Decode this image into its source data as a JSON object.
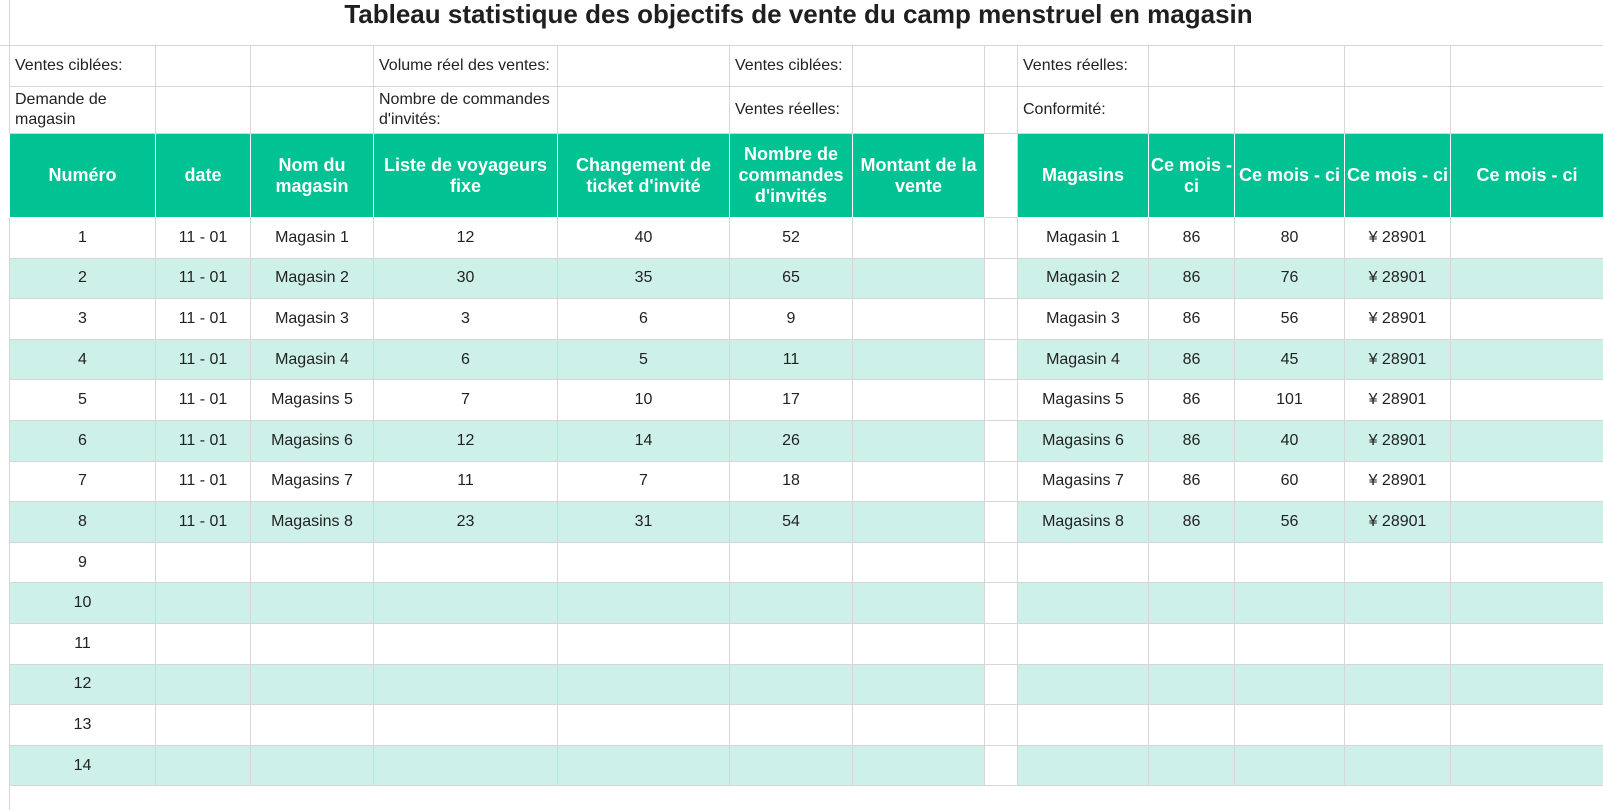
{
  "title": "Tableau statistique des objectifs de vente du camp menstruel en magasin",
  "info": {
    "row1": {
      "a": "Ventes ciblées:",
      "b": "Volume réel des ventes:",
      "c": "Ventes ciblées:",
      "d": "Ventes réelles:"
    },
    "row2": {
      "a": "Demande de magasin",
      "b": "Nombre de commandes d'invités:",
      "c": "Ventes réelles:",
      "d": "Conformité:"
    }
  },
  "left_table": {
    "headers": [
      "Numéro",
      "date",
      "Nom du magasin",
      "Liste de voyageurs fixe",
      "Changement de ticket d'invité",
      "Nombre de commandes d'invités",
      "Montant de la vente"
    ],
    "rows": [
      [
        "1",
        "11 - 01",
        "Magasin 1",
        "12",
        "40",
        "52",
        ""
      ],
      [
        "2",
        "11 - 01",
        "Magasin 2",
        "30",
        "35",
        "65",
        ""
      ],
      [
        "3",
        "11 - 01",
        "Magasin 3",
        "3",
        "6",
        "9",
        ""
      ],
      [
        "4",
        "11 - 01",
        "Magasin 4",
        "6",
        "5",
        "11",
        ""
      ],
      [
        "5",
        "11 - 01",
        "Magasins 5",
        "7",
        "10",
        "17",
        ""
      ],
      [
        "6",
        "11 - 01",
        "Magasins 6",
        "12",
        "14",
        "26",
        ""
      ],
      [
        "7",
        "11 - 01",
        "Magasins 7",
        "11",
        "7",
        "18",
        ""
      ],
      [
        "8",
        "11 - 01",
        "Magasins 8",
        "23",
        "31",
        "54",
        ""
      ],
      [
        "9",
        "",
        "",
        "",
        "",
        "",
        ""
      ],
      [
        "10",
        "",
        "",
        "",
        "",
        "",
        ""
      ],
      [
        "11",
        "",
        "",
        "",
        "",
        "",
        ""
      ],
      [
        "12",
        "",
        "",
        "",
        "",
        "",
        ""
      ],
      [
        "13",
        "",
        "",
        "",
        "",
        "",
        ""
      ],
      [
        "14",
        "",
        "",
        "",
        "",
        "",
        ""
      ]
    ]
  },
  "right_table": {
    "headers": [
      "Magasins",
      "Ce mois - ci",
      "Ce mois - ci",
      "Ce mois - ci",
      "Ce mois - ci"
    ],
    "rows": [
      [
        "Magasin 1",
        "86",
        "80",
        "¥ 28901",
        ""
      ],
      [
        "Magasin 2",
        "86",
        "76",
        "¥ 28901",
        ""
      ],
      [
        "Magasin 3",
        "86",
        "56",
        "¥ 28901",
        ""
      ],
      [
        "Magasin 4",
        "86",
        "45",
        "¥ 28901",
        ""
      ],
      [
        "Magasins 5",
        "86",
        "101",
        "¥ 28901",
        ""
      ],
      [
        "Magasins 6",
        "86",
        "40",
        "¥ 28901",
        ""
      ],
      [
        "Magasins 7",
        "86",
        "60",
        "¥ 28901",
        ""
      ],
      [
        "Magasins 8",
        "86",
        "56",
        "¥ 28901",
        ""
      ],
      [
        "",
        "",
        "",
        "",
        ""
      ],
      [
        "",
        "",
        "",
        "",
        ""
      ],
      [
        "",
        "",
        "",
        "",
        ""
      ],
      [
        "",
        "",
        "",
        "",
        ""
      ],
      [
        "",
        "",
        "",
        "",
        ""
      ],
      [
        "",
        "",
        "",
        "",
        ""
      ]
    ]
  },
  "colors": {
    "header_bg": "#00c293",
    "header_text": "#ffffff",
    "alt_row_bg": "#cdf1e8",
    "grid_line": "#d6d6d6"
  }
}
